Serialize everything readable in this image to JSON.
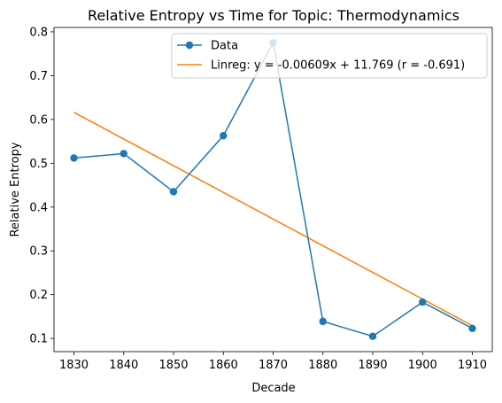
{
  "chart_data": {
    "type": "line",
    "title": "Relative Entropy vs Time for Topic: Thermodynamics",
    "xlabel": "Decade",
    "ylabel": "Relative Entropy",
    "x": [
      1830,
      1840,
      1850,
      1860,
      1870,
      1880,
      1890,
      1900,
      1910
    ],
    "xlim": [
      1826,
      1914
    ],
    "ylim": [
      0.07,
      0.81
    ],
    "xticks": [
      "1830",
      "1840",
      "1850",
      "1860",
      "1870",
      "1880",
      "1890",
      "1900",
      "1910"
    ],
    "yticks": [
      "0.1",
      "0.2",
      "0.3",
      "0.4",
      "0.5",
      "0.6",
      "0.7",
      "0.8"
    ],
    "series": [
      {
        "name": "Data",
        "color": "#1f77b4",
        "marker": "circle",
        "values": [
          0.512,
          0.522,
          0.435,
          0.563,
          0.775,
          0.139,
          0.105,
          0.183,
          0.123
        ]
      },
      {
        "name": "Linreg: y = -0.00609x + 11.769 (r = -0.691)",
        "color": "#ff7f0e",
        "marker": "none",
        "values": [
          0.6163,
          0.5554,
          0.4945,
          0.4336,
          0.3727,
          0.3118,
          0.2509,
          0.19,
          0.1291
        ]
      }
    ],
    "grid": false,
    "legend_position": "top-right"
  }
}
